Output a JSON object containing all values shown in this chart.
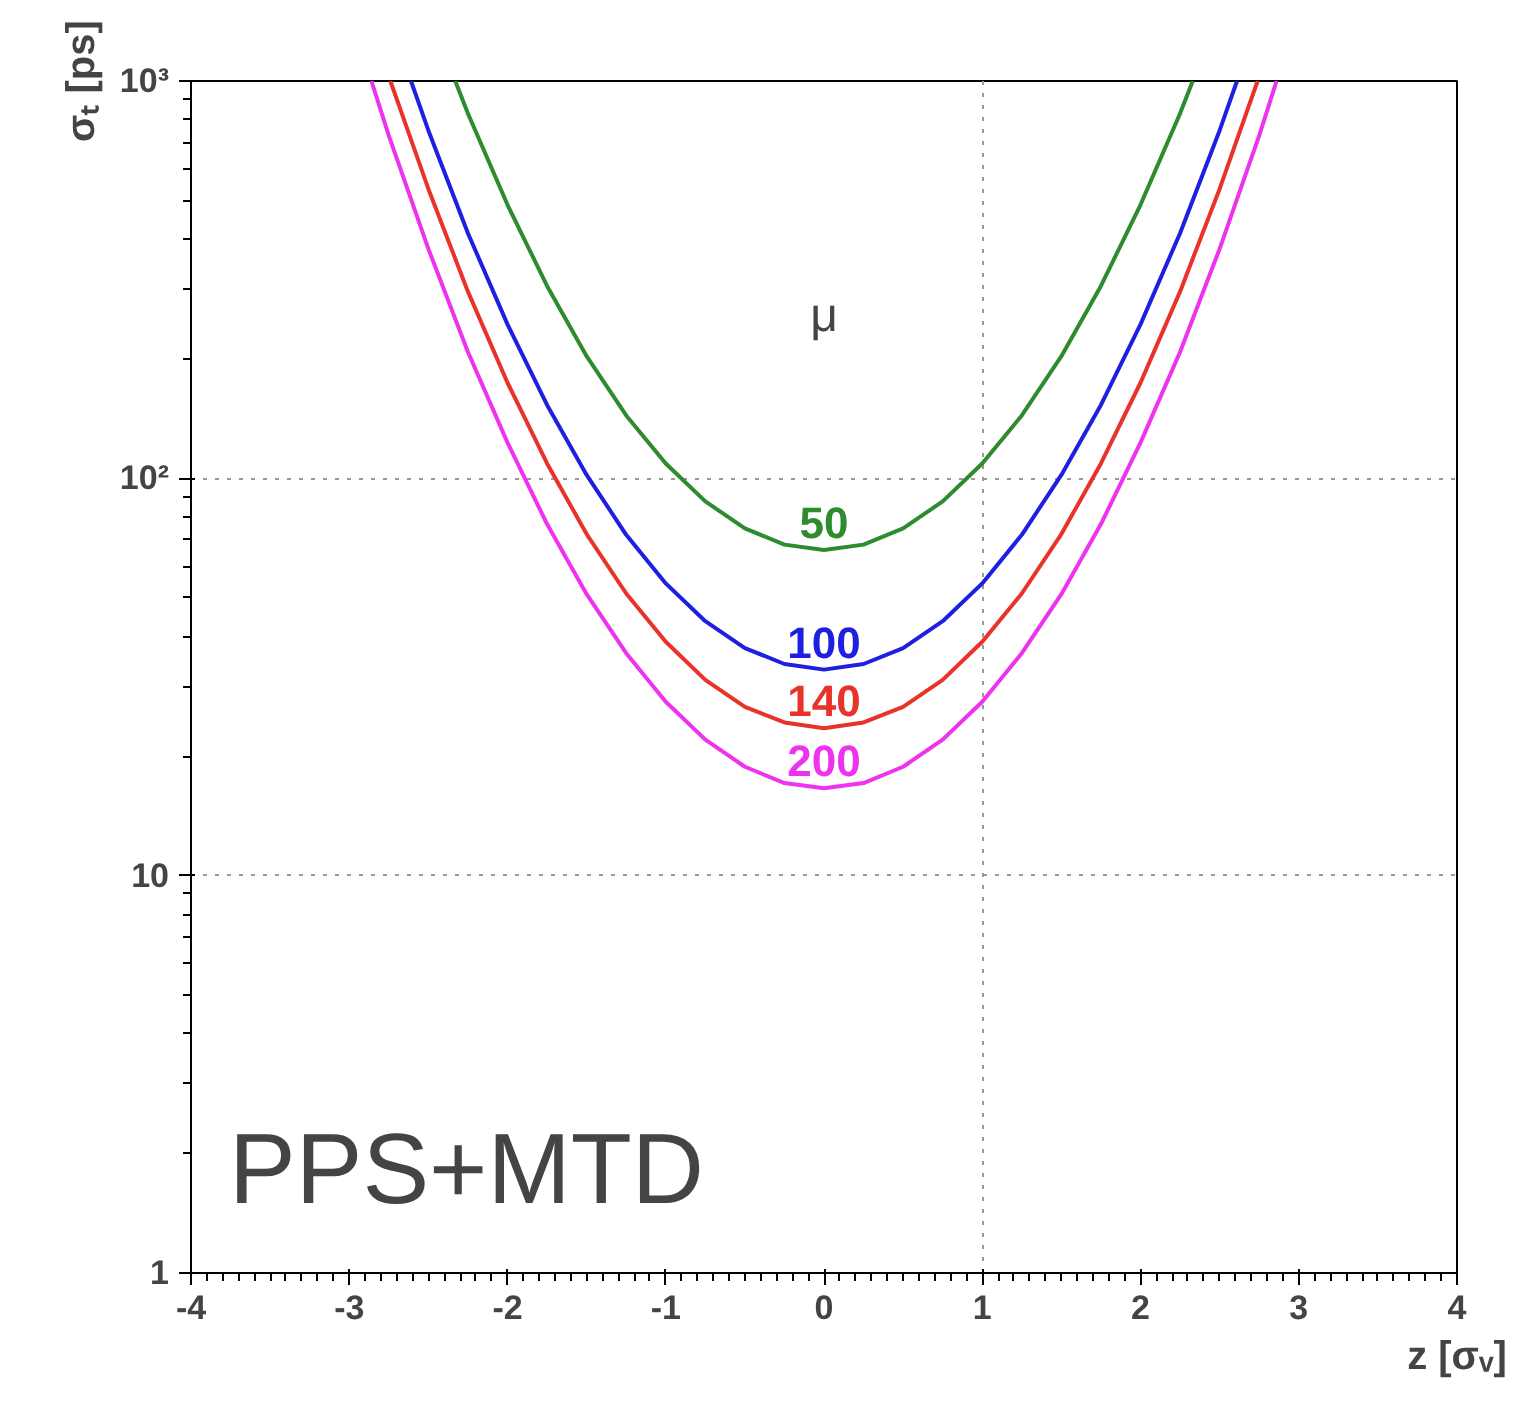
{
  "chart_data": {
    "type": "line",
    "xlabel": "z [σᵥ]",
    "ylabel": "σₜ [ps]",
    "log": "y",
    "grid": true,
    "xlim": [
      -4,
      4
    ],
    "xticks": [
      -4,
      -3,
      -2,
      -1,
      0,
      1,
      2,
      3,
      4
    ],
    "ylim": [
      1,
      1000
    ],
    "yticks": [
      1,
      10,
      {
        "value": 100,
        "label": "10²"
      },
      {
        "value": 1000,
        "label": "10³"
      }
    ],
    "series": [
      {
        "name": "50",
        "color": "#2e8b2e",
        "x": [
          -2.33,
          -2.25,
          -2,
          -1.75,
          -1.5,
          -1.25,
          -1,
          -0.75,
          -0.5,
          -0.25,
          0,
          0.25,
          0.5,
          0.75,
          1,
          1.25,
          1.5,
          1.75,
          2,
          2.25,
          2.33
        ],
        "values": [
          1000,
          828,
          488,
          305,
          203,
          144,
          109,
          87.5,
          74.8,
          68.1,
          66,
          68.1,
          74.8,
          87.5,
          109,
          144,
          203,
          305,
          488,
          828,
          1000
        ]
      },
      {
        "name": "100",
        "color": "#1f1fe0",
        "x": [
          -2.61,
          -2.5,
          -2.25,
          -2,
          -1.75,
          -1.5,
          -1.25,
          -1,
          -0.75,
          -0.5,
          -0.25,
          0,
          0.25,
          0.5,
          0.75,
          1,
          1.25,
          1.5,
          1.75,
          2,
          2.25,
          2.5,
          2.61
        ],
        "values": [
          1000,
          751,
          414,
          244,
          153,
          102,
          72.1,
          54.4,
          43.7,
          37.4,
          34.1,
          33,
          34.1,
          37.4,
          43.7,
          54.4,
          72.1,
          102,
          153,
          244,
          414,
          751,
          1000
        ]
      },
      {
        "name": "140",
        "color": "#e8322a",
        "x": [
          -2.74,
          -2.5,
          -2.25,
          -2,
          -1.75,
          -1.5,
          -1.25,
          -1,
          -0.75,
          -0.5,
          -0.25,
          0,
          0.25,
          0.5,
          0.75,
          1,
          1.25,
          1.5,
          1.75,
          2,
          2.25,
          2.5,
          2.74
        ],
        "values": [
          1000,
          535,
          295,
          174,
          109,
          72.4,
          51.3,
          38.8,
          31.1,
          26.6,
          24.3,
          23.5,
          24.3,
          26.6,
          31.1,
          38.8,
          51.3,
          72.4,
          109,
          174,
          295,
          535,
          1000
        ]
      },
      {
        "name": "200",
        "color": "#ee33ee",
        "x": [
          -2.86,
          -2.75,
          -2.5,
          -2.25,
          -2,
          -1.75,
          -1.5,
          -1.25,
          -1,
          -0.75,
          -0.5,
          -0.25,
          0,
          0.25,
          0.5,
          0.75,
          1,
          1.25,
          1.5,
          1.75,
          2,
          2.25,
          2.5,
          2.75,
          2.86
        ],
        "values": [
          1000,
          729,
          378,
          208,
          123,
          76.7,
          51.1,
          36.3,
          27.4,
          22,
          18.8,
          17.1,
          16.6,
          17.1,
          18.8,
          22,
          27.4,
          36.3,
          51.1,
          76.7,
          123,
          208,
          378,
          729,
          1000
        ]
      }
    ],
    "annotations": [
      "μ",
      "PPS+MTD"
    ]
  }
}
